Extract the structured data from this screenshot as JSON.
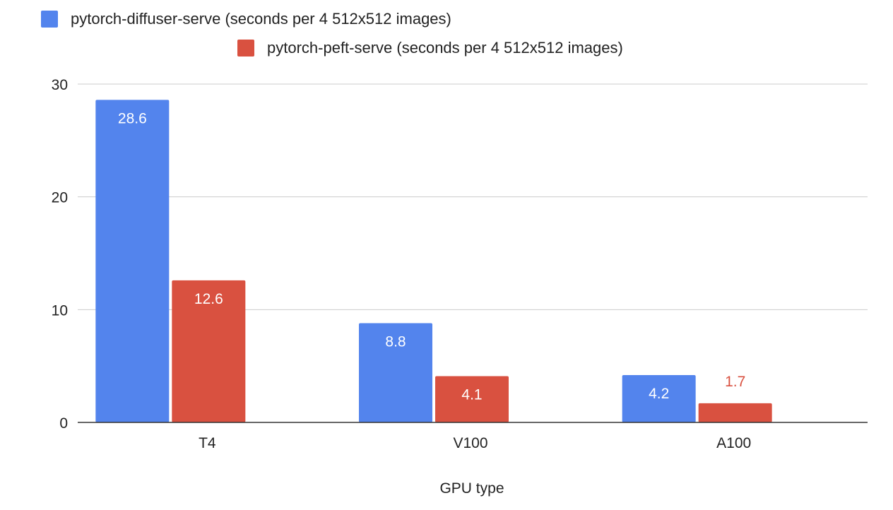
{
  "chart_data": {
    "type": "bar",
    "categories": [
      "T4",
      "V100",
      "A100"
    ],
    "series": [
      {
        "name": "pytorch-diffuser-serve (seconds per 4 512x512 images)",
        "values": [
          28.6,
          8.8,
          4.2
        ],
        "color": "#5384ED"
      },
      {
        "name": "pytorch-peft-serve (seconds per 4 512x512 images)",
        "values": [
          12.6,
          4.1,
          1.7
        ],
        "color": "#D95140"
      }
    ],
    "title": "",
    "xlabel": "GPU type",
    "ylabel": "",
    "ylim": [
      0,
      30
    ],
    "yticks": [
      0,
      10,
      20,
      30
    ],
    "grid": true,
    "legend_position": "top"
  }
}
